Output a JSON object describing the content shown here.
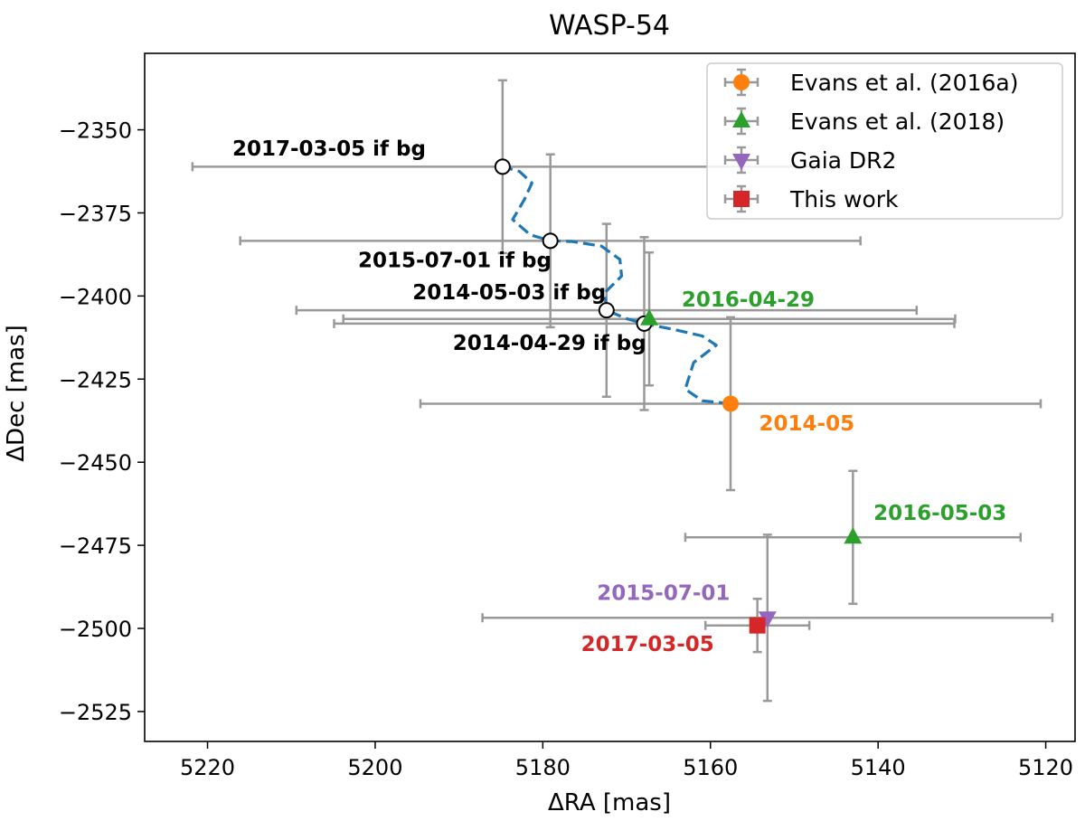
{
  "chart_data": {
    "type": "scatter",
    "title": "WASP-54",
    "xlabel": "ΔRA [mas]",
    "ylabel": "ΔDec [mas]",
    "xlim": [
      5227.5,
      5116.5
    ],
    "ylim": [
      -2534,
      -2327
    ],
    "x_inverted": true,
    "xticks": [
      5220,
      5200,
      5180,
      5160,
      5140,
      5120
    ],
    "yticks": [
      -2350,
      -2375,
      -2400,
      -2425,
      -2450,
      -2475,
      -2500,
      -2525
    ],
    "xtick_labels": [
      "5220",
      "5200",
      "5180",
      "5160",
      "5140",
      "5120"
    ],
    "ytick_labels": [
      "−2350",
      "−2375",
      "−2400",
      "−2425",
      "−2450",
      "−2475",
      "−2500",
      "−2525"
    ],
    "legend_position": "top-right",
    "colors": {
      "orange": "#ff7f0e",
      "green": "#2ca02c",
      "purple": "#9467bd",
      "red": "#d62728",
      "blue": "#1f77b4",
      "errorbar": "#999999",
      "bg_label": "#000000"
    },
    "series": [
      {
        "name": "Evans et al. (2016a)",
        "marker": "circle",
        "color": "#ff7f0e",
        "points": [
          {
            "x": 5157.6,
            "y": -2432.4,
            "xerr": 37,
            "yerr": 26
          }
        ]
      },
      {
        "name": "Evans et al. (2018)",
        "marker": "triangle-up",
        "color": "#2ca02c",
        "points": [
          {
            "x": 5167.3,
            "y": -2406.9,
            "xerr": 36.5,
            "yerr": 20
          },
          {
            "x": 5143.0,
            "y": -2472.6,
            "xerr": 20,
            "yerr": 20
          }
        ]
      },
      {
        "name": "Gaia DR2",
        "marker": "triangle-down",
        "color": "#9467bd",
        "points": [
          {
            "x": 5153.2,
            "y": -2496.8,
            "xerr": 34,
            "yerr": 25
          }
        ]
      },
      {
        "name": "This work",
        "marker": "square",
        "color": "#d62728",
        "points": [
          {
            "x": 5154.4,
            "y": -2499.1,
            "xerr": 6.2,
            "yerr": 8
          }
        ]
      }
    ],
    "background_predictions": [
      {
        "label": "2014-04-29 if bg",
        "x": 5167.9,
        "y": -2408.3,
        "xerr": 37,
        "yerr": 26
      },
      {
        "label": "2014-05-03 if bg",
        "x": 5172.4,
        "y": -2404.3,
        "xerr": 37,
        "yerr": 26
      },
      {
        "label": "2015-07-01 if bg",
        "x": 5179.1,
        "y": -2383.4,
        "xerr": 37,
        "yerr": 26
      },
      {
        "label": "2017-03-05 if bg",
        "x": 5184.8,
        "y": -2361.1,
        "xerr": 37,
        "yerr": 26
      }
    ],
    "bg_track": [
      [
        5157.6,
        -2432.4
      ],
      [
        5161.0,
        -2431.5
      ],
      [
        5163.0,
        -2428.0
      ],
      [
        5162.0,
        -2420.0
      ],
      [
        5159.3,
        -2414.8
      ],
      [
        5161.0,
        -2412.0
      ],
      [
        5164.5,
        -2410.0
      ],
      [
        5167.9,
        -2408.3
      ],
      [
        5170.0,
        -2406.8
      ],
      [
        5172.4,
        -2404.3
      ],
      [
        5172.6,
        -2399.0
      ],
      [
        5170.6,
        -2394.0
      ],
      [
        5170.8,
        -2389.0
      ],
      [
        5173.0,
        -2385.0
      ],
      [
        5176.5,
        -2383.6
      ],
      [
        5179.1,
        -2383.4
      ],
      [
        5181.5,
        -2381.6
      ],
      [
        5183.6,
        -2377.0
      ],
      [
        5182.2,
        -2371.0
      ],
      [
        5181.3,
        -2366.0
      ],
      [
        5182.8,
        -2362.5
      ],
      [
        5184.8,
        -2361.1
      ]
    ],
    "annotations": [
      {
        "text": "2017-03-05 if bg",
        "x": 5205.5,
        "y": -2357.8,
        "color": "#000000"
      },
      {
        "text": "2015-07-01 if bg",
        "x": 5190.5,
        "y": -2391.3,
        "color": "#000000"
      },
      {
        "text": "2014-05-03 if bg",
        "x": 5184.0,
        "y": -2401.0,
        "color": "#000000"
      },
      {
        "text": "2014-04-29 if bg",
        "x": 5179.2,
        "y": -2416.2,
        "color": "#000000"
      },
      {
        "text": "2016-04-29",
        "x": 5155.5,
        "y": -2403.1,
        "color": "#2ca02c"
      },
      {
        "text": "2014-05",
        "x": 5148.5,
        "y": -2440.4,
        "color": "#ff7f0e"
      },
      {
        "text": "2016-05-03",
        "x": 5132.6,
        "y": -2467.4,
        "color": "#2ca02c"
      },
      {
        "text": "2015-07-01",
        "x": 5165.6,
        "y": -2491.4,
        "color": "#9467bd"
      },
      {
        "text": "2017-03-05",
        "x": 5167.5,
        "y": -2506.8,
        "color": "#d62728"
      }
    ]
  }
}
